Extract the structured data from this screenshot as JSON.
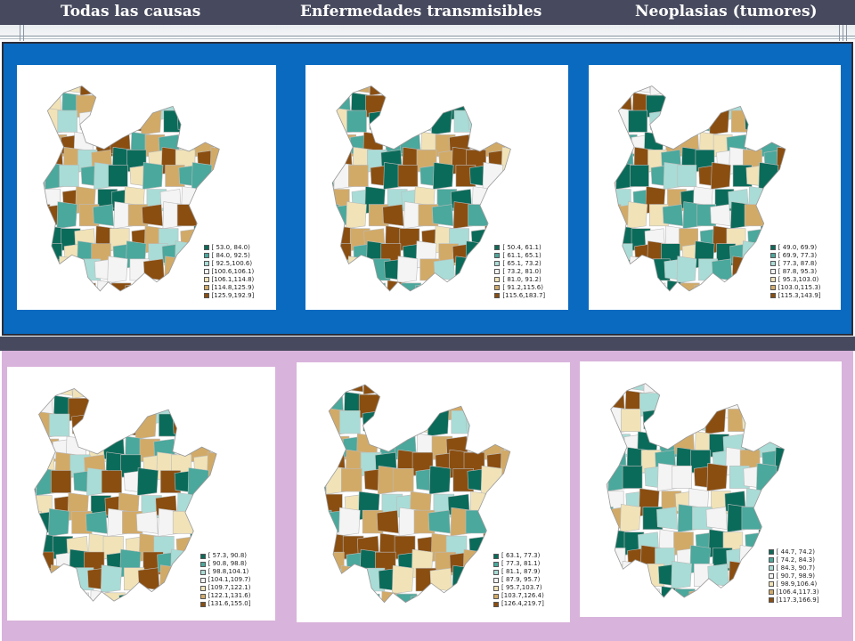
{
  "header": {
    "titles": [
      "Todas las causas",
      "Enfermedades transmisibles",
      "Neoplasias (tumores)"
    ]
  },
  "palette": [
    "#0b6b5a",
    "#4aa89c",
    "#a9dcd6",
    "#f4f4f4",
    "#f1e3b7",
    "#d2aa67",
    "#8a4e10"
  ],
  "maps": [
    {
      "row": "top",
      "column": "todas-las-causas",
      "legend": [
        "[ 53.0, 84.0)",
        "[ 84.0, 92.5)",
        "[ 92.5,100.6)",
        "[100.6,106.1)",
        "[106.1,114.8)",
        "[114.8,125.9)",
        "[125.9,192.9]"
      ],
      "pattern": [
        0,
        1,
        3,
        3,
        6,
        5,
        4,
        1,
        0,
        2,
        6,
        6,
        5,
        1,
        2,
        3,
        4,
        0,
        5,
        6,
        2,
        1,
        3,
        5,
        6,
        4,
        0,
        1,
        5,
        2,
        3,
        6,
        4,
        1,
        0,
        5
      ]
    },
    {
      "row": "top",
      "column": "enfermedades-transmisibles",
      "legend": [
        "[ 50.4, 61.1)",
        "[ 61.1, 65.1)",
        "[ 65.1, 73.2)",
        "[ 73.2, 81.0)",
        "[ 81.0, 91.2)",
        "[ 91.2,115.6)",
        "[115.6,183.7]"
      ],
      "pattern": [
        6,
        6,
        5,
        6,
        6,
        6,
        4,
        6,
        5,
        0,
        2,
        1,
        4,
        0,
        1,
        3,
        5,
        6,
        0,
        1,
        2,
        3,
        0,
        5,
        6,
        1,
        2,
        4,
        0,
        5,
        3,
        1,
        6,
        0,
        2,
        5
      ]
    },
    {
      "row": "top",
      "column": "neoplasias",
      "legend": [
        "[ 49.0, 69.9)",
        "[ 69.9, 77.3)",
        "[ 77.3, 87.8)",
        "[ 87.8, 95.3)",
        "[ 95.3,103.0)",
        "[103.0,115.3)",
        "[115.3,143.9]"
      ],
      "pattern": [
        0,
        1,
        2,
        0,
        1,
        0,
        3,
        1,
        0,
        2,
        1,
        5,
        6,
        4,
        0,
        1,
        3,
        2,
        6,
        5,
        4,
        0,
        2,
        1,
        3,
        6,
        5,
        4,
        1,
        0,
        2,
        3,
        5,
        6,
        0,
        4
      ]
    },
    {
      "row": "bottom",
      "column": "todas-las-causas",
      "legend": [
        "[ 57.3, 90.8)",
        "[ 90.8, 98.8)",
        "[ 98.8,104.1)",
        "[104.1,109.7)",
        "[109.7,122.1)",
        "[122.1,131.6)",
        "[131.6,155.0]"
      ],
      "pattern": [
        0,
        1,
        4,
        3,
        4,
        6,
        5,
        1,
        0,
        2,
        6,
        4,
        5,
        0,
        2,
        3,
        4,
        6,
        5,
        0,
        2,
        1,
        6,
        5,
        4,
        3,
        0,
        1,
        5,
        6,
        2,
        3,
        4,
        0,
        6,
        5
      ]
    },
    {
      "row": "bottom",
      "column": "enfermedades-transmisibles",
      "legend": [
        "[ 63.1, 77.3)",
        "[ 77.3, 81.1)",
        "[ 81.1, 87.9)",
        "[ 87.9, 95.7)",
        "[ 95.7,103.7)",
        "[103.7,126.4)",
        "[126.4,219.7]"
      ],
      "pattern": [
        6,
        6,
        6,
        5,
        6,
        6,
        5,
        6,
        6,
        5,
        4,
        1,
        5,
        0,
        2,
        3,
        6,
        5,
        0,
        1,
        2,
        4,
        0,
        5,
        6,
        1,
        2,
        3,
        0,
        5,
        4,
        1,
        6,
        0,
        2,
        5
      ]
    },
    {
      "row": "bottom",
      "column": "neoplasias",
      "legend": [
        "[ 44.7, 74.2)",
        "[ 74.2, 84.3)",
        "[ 84.3, 90.7)",
        "[ 90.7, 98.9)",
        "[ 98.9,106.4)",
        "[106.4,117.3)",
        "[117.3,166.9]"
      ],
      "pattern": [
        0,
        2,
        3,
        0,
        1,
        2,
        3,
        2,
        0,
        3,
        2,
        1,
        0,
        3,
        4,
        1,
        2,
        3,
        6,
        5,
        4,
        1,
        0,
        2,
        3,
        6,
        5,
        4,
        1,
        0,
        2,
        3,
        5,
        6,
        4,
        0
      ]
    }
  ]
}
